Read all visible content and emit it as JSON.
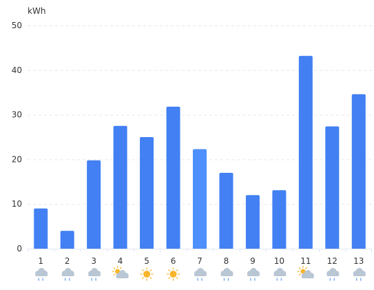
{
  "chart_data": {
    "type": "bar",
    "ylabel": "kWh",
    "ylim": [
      0,
      50
    ],
    "yticks": [
      0,
      10,
      20,
      30,
      40,
      50
    ],
    "grid": true,
    "categories": [
      "1",
      "2",
      "3",
      "4",
      "5",
      "6",
      "7",
      "8",
      "9",
      "10",
      "11",
      "12",
      "13"
    ],
    "values": [
      9,
      4,
      19.8,
      27.5,
      25,
      31.8,
      22.3,
      17,
      12,
      13.1,
      43.2,
      27.4,
      34.6
    ],
    "weather_icons": [
      "rain-icon",
      "rain-icon",
      "rain-icon",
      "partly-cloudy-icon",
      "sun-icon",
      "sun-icon",
      "rain-icon",
      "rain-icon",
      "rain-icon",
      "rain-icon",
      "partly-cloudy-icon",
      "rain-icon",
      "rain-icon"
    ],
    "colors": {
      "bar": "#4280f3",
      "bar_highlight": "#4d8ffc",
      "grid": "#e6e6e6",
      "axis": "#e0e6f1"
    },
    "highlight_index": 6
  }
}
